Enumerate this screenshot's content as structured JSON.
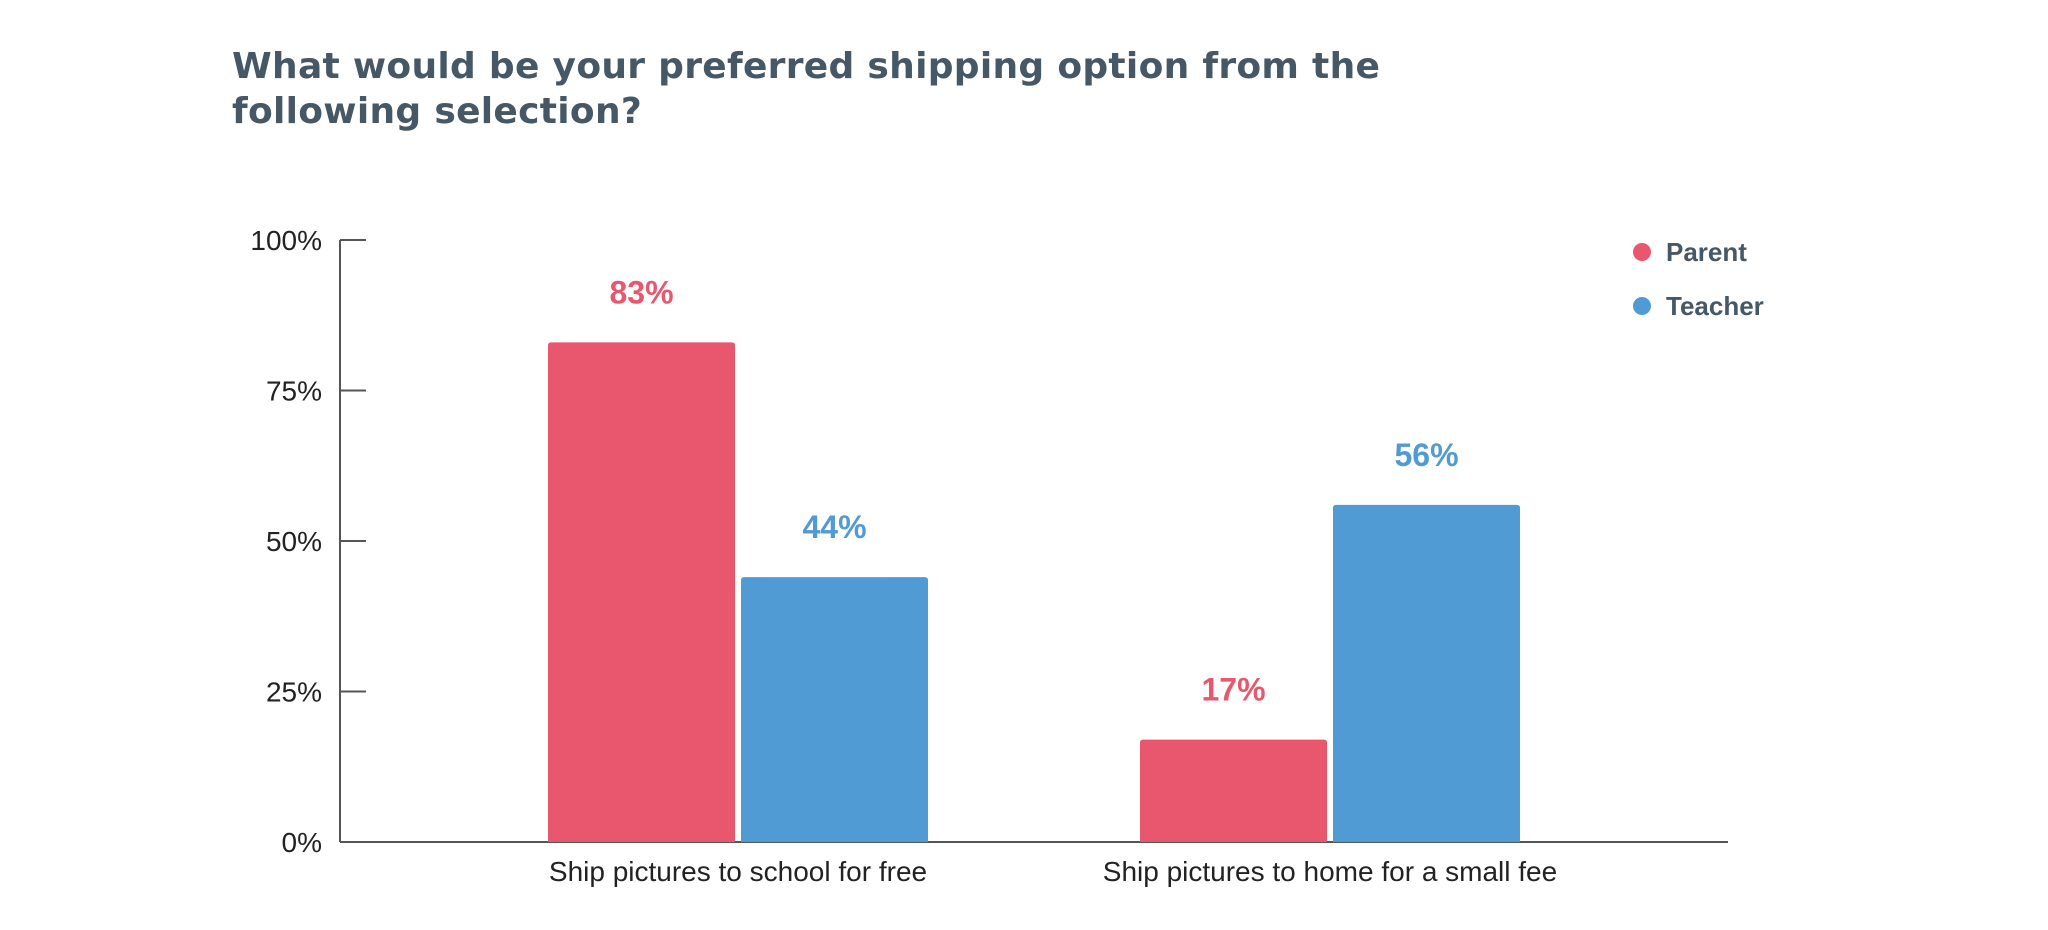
{
  "title_lines": [
    "What would be your preferred shipping option from the",
    "following selection?"
  ],
  "chart_data": {
    "type": "bar",
    "title": "What would be your preferred shipping option from the following selection?",
    "categories": [
      "Ship pictures to school for free",
      "Ship pictures to home for a small fee"
    ],
    "series": [
      {
        "name": "Parent",
        "values": [
          83,
          17
        ],
        "labels": [
          "83%",
          "17%"
        ],
        "color": "#e9576e"
      },
      {
        "name": "Teacher",
        "values": [
          44,
          56
        ],
        "labels": [
          "44%",
          "56%"
        ],
        "color": "#519bd4"
      }
    ],
    "ylim": [
      0,
      100
    ],
    "yticks": [
      0,
      25,
      50,
      75,
      100
    ],
    "ytick_labels": [
      "0%",
      "25%",
      "50%",
      "75%",
      "100%"
    ],
    "xlabel": "",
    "ylabel": "",
    "grid": false,
    "legend_position": "top-right"
  },
  "colors": {
    "title": "#465766",
    "axis": "#555555",
    "text": "#222222"
  }
}
